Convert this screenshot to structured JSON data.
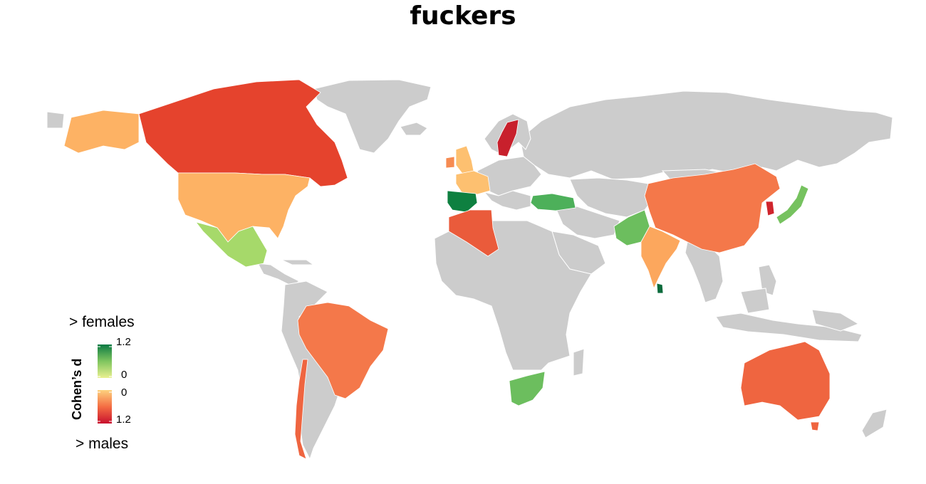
{
  "title": "fuckers",
  "legend": {
    "title": "Cohen’s d",
    "top_label": "> females",
    "bottom_label": "> males",
    "female_ticks": [
      "1.2",
      "0"
    ],
    "male_ticks": [
      "0",
      "1.2"
    ],
    "female_scale_colors": [
      "#0b7a43",
      "#e9f08f"
    ],
    "male_scale_colors": [
      "#fdd27e",
      "#c8102e"
    ]
  },
  "colors": {
    "no_data": "#cccccc",
    "land_border": "#ffffff",
    "ocean": "#ffffff"
  },
  "countries": [
    {
      "name": "Canada",
      "group": "males",
      "d": 1.0,
      "color": "#e5432d"
    },
    {
      "name": "United States",
      "group": "males",
      "d": 0.4,
      "color": "#fdb264"
    },
    {
      "name": "Alaska",
      "group": "males",
      "d": 0.4,
      "color": "#fdb264"
    },
    {
      "name": "Mexico",
      "group": "females",
      "d": 0.35,
      "color": "#a6d96a"
    },
    {
      "name": "Brazil",
      "group": "males",
      "d": 0.7,
      "color": "#f4784a"
    },
    {
      "name": "Chile",
      "group": "males",
      "d": 0.8,
      "color": "#ef6540"
    },
    {
      "name": "United Kingdom",
      "group": "males",
      "d": 0.3,
      "color": "#fdc070"
    },
    {
      "name": "Ireland",
      "group": "males",
      "d": 0.6,
      "color": "#f68b52"
    },
    {
      "name": "France",
      "group": "males",
      "d": 0.3,
      "color": "#fdc070"
    },
    {
      "name": "Spain",
      "group": "females",
      "d": 1.1,
      "color": "#0e8040"
    },
    {
      "name": "Sweden",
      "group": "males",
      "d": 1.2,
      "color": "#c8202c"
    },
    {
      "name": "Algeria",
      "group": "males",
      "d": 0.85,
      "color": "#ea5b3b"
    },
    {
      "name": "Turkey",
      "group": "females",
      "d": 0.7,
      "color": "#4db05a"
    },
    {
      "name": "Pakistan",
      "group": "females",
      "d": 0.6,
      "color": "#6cbe5e"
    },
    {
      "name": "India",
      "group": "males",
      "d": 0.45,
      "color": "#fca75d"
    },
    {
      "name": "China",
      "group": "males",
      "d": 0.7,
      "color": "#f4784a"
    },
    {
      "name": "South Korea",
      "group": "males",
      "d": 1.15,
      "color": "#d0242c"
    },
    {
      "name": "Japan",
      "group": "females",
      "d": 0.55,
      "color": "#76c25f"
    },
    {
      "name": "Sri Lanka",
      "group": "females",
      "d": 1.2,
      "color": "#0b6b3c"
    },
    {
      "name": "South Africa",
      "group": "females",
      "d": 0.6,
      "color": "#6cbe5e"
    },
    {
      "name": "Australia",
      "group": "males",
      "d": 0.8,
      "color": "#ef6540"
    }
  ]
}
